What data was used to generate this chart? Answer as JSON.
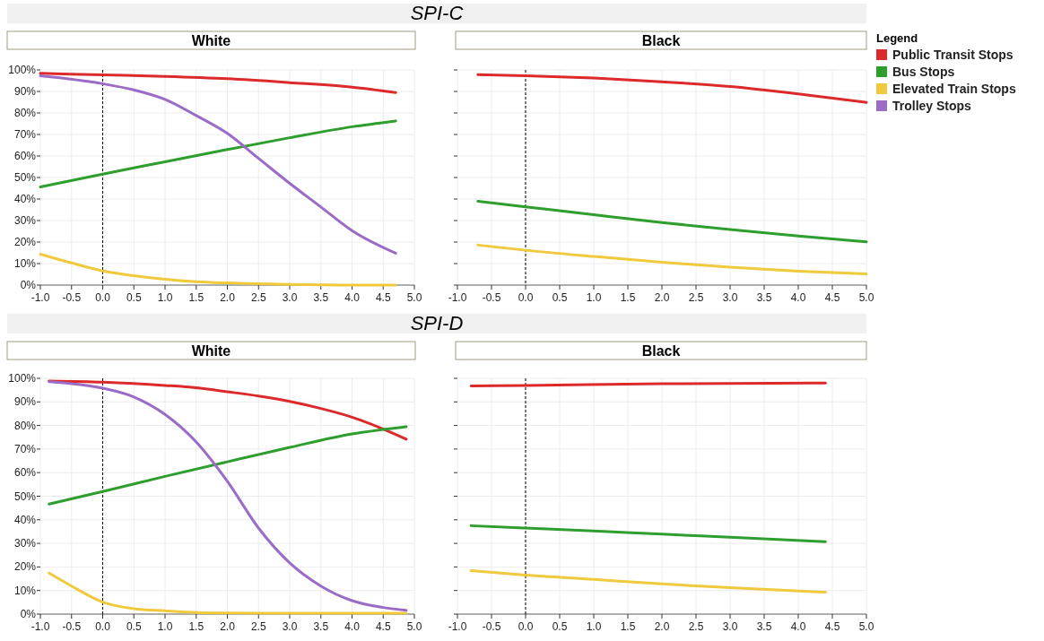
{
  "chart_data": [
    {
      "type": "line",
      "title": "White",
      "annotations": [
        "SPI-C"
      ],
      "legend": "right",
      "legend_title": "Legend",
      "grid": true,
      "xlim": [
        -1,
        5
      ],
      "ylim": [
        0,
        100
      ],
      "xticks": [
        {
          "value": -1,
          "label": "-1.0"
        },
        {
          "value": -0.5,
          "label": "-0.5"
        },
        {
          "value": 0,
          "label": "0.0"
        },
        {
          "value": 0.5,
          "label": "0.5"
        },
        {
          "value": 1,
          "label": "1.0"
        },
        {
          "value": 1.5,
          "label": "1.5"
        },
        {
          "value": 2,
          "label": "2.0"
        },
        {
          "value": 2.5,
          "label": "2.5"
        },
        {
          "value": 3,
          "label": "3.0"
        },
        {
          "value": 3.5,
          "label": "3.5"
        },
        {
          "value": 4,
          "label": "4.0"
        },
        {
          "value": 4.5,
          "label": "4.5"
        },
        {
          "value": 5,
          "label": "5.0"
        }
      ],
      "yticks": [
        {
          "value": 0,
          "label": "0%"
        },
        {
          "value": 10,
          "label": "10%"
        },
        {
          "value": 20,
          "label": "20%"
        },
        {
          "value": 30,
          "label": "30%"
        },
        {
          "value": 40,
          "label": "40%"
        },
        {
          "value": 50,
          "label": "50%"
        },
        {
          "value": 60,
          "label": "60%"
        },
        {
          "value": 70,
          "label": "70%"
        },
        {
          "value": 80,
          "label": "80%"
        },
        {
          "value": 90,
          "label": "90%"
        },
        {
          "value": 100,
          "label": "100%"
        }
      ],
      "ref_lines": [
        {
          "axis": "x",
          "value": 0,
          "color": "#000000",
          "line_style": "dashed"
        }
      ],
      "series": [
        {
          "name": "Public Transit Stops",
          "color": "#dc2a2a",
          "x": [
            -1,
            0,
            1,
            2,
            3,
            4,
            4.7
          ],
          "values": [
            98.4,
            97.7,
            97,
            95.9,
            94.1,
            92,
            89.5
          ]
        },
        {
          "name": "Bus Stops",
          "color": "#2e9e2e",
          "x": [
            -1,
            0,
            1,
            2,
            3,
            4,
            4.7
          ],
          "values": [
            45.6,
            51.6,
            57.3,
            63,
            68.5,
            73.6,
            76.3
          ]
        },
        {
          "name": "Elevated Train Stops",
          "color": "#f0c93c",
          "x": [
            -1,
            -0.5,
            0,
            0.5,
            1,
            1.5,
            2,
            3,
            4,
            4.7
          ],
          "values": [
            14.4,
            10.3,
            6.6,
            4.4,
            2.7,
            1.6,
            1,
            0.3,
            0,
            0
          ]
        },
        {
          "name": "Trolley Stops",
          "color": "#9b6bc8",
          "x": [
            -1,
            0,
            0.5,
            1,
            1.5,
            2,
            2.5,
            3,
            3.5,
            4,
            4.7
          ],
          "values": [
            97.3,
            93.6,
            90.7,
            86.3,
            78.8,
            70.5,
            58.9,
            47.3,
            36.3,
            25.3,
            14.8
          ]
        }
      ]
    },
    {
      "type": "line",
      "title": "Black",
      "grid": true,
      "tick_labels": "x",
      "xlim": [
        -1,
        5
      ],
      "ylim": [
        0,
        100
      ],
      "xticks": [
        {
          "value": -1,
          "label": "-1.0"
        },
        {
          "value": -0.5,
          "label": "-0.5"
        },
        {
          "value": 0,
          "label": "0.0"
        },
        {
          "value": 0.5,
          "label": "0.5"
        },
        {
          "value": 1,
          "label": "1.0"
        },
        {
          "value": 1.5,
          "label": "1.5"
        },
        {
          "value": 2,
          "label": "2.0"
        },
        {
          "value": 2.5,
          "label": "2.5"
        },
        {
          "value": 3,
          "label": "3.0"
        },
        {
          "value": 3.5,
          "label": "3.5"
        },
        {
          "value": 4,
          "label": "4.0"
        },
        {
          "value": 4.5,
          "label": "4.5"
        },
        {
          "value": 5,
          "label": "5.0"
        }
      ],
      "yticks": [
        0,
        10,
        20,
        30,
        40,
        50,
        60,
        70,
        80,
        90,
        100
      ],
      "ref_lines": [
        {
          "axis": "x",
          "value": 0,
          "color": "#000000",
          "line_style": "dashed"
        }
      ],
      "series": [
        {
          "color": "#dc2a2a",
          "x": [
            -0.7,
            0,
            1,
            2,
            3,
            4,
            5
          ],
          "values": [
            97.8,
            97.3,
            96.2,
            94.5,
            92.3,
            88.9,
            84.9
          ]
        },
        {
          "color": "#2e9e2e",
          "x": [
            -0.7,
            0,
            1,
            2,
            3,
            4,
            5
          ],
          "values": [
            39,
            36.4,
            32.7,
            29.1,
            25.8,
            22.8,
            20.1
          ]
        },
        {
          "color": "#f0c93c",
          "x": [
            -0.7,
            0,
            1,
            2,
            3,
            4,
            5
          ],
          "values": [
            18.6,
            16.2,
            13.3,
            10.6,
            8.3,
            6.5,
            5.2
          ]
        }
      ]
    },
    {
      "type": "line",
      "title": "White",
      "annotations": [
        "SPI-D"
      ],
      "grid": true,
      "xlim": [
        -1,
        5
      ],
      "ylim": [
        0,
        100
      ],
      "xticks": [
        {
          "value": -1,
          "label": "-1.0"
        },
        {
          "value": -0.5,
          "label": "-0.5"
        },
        {
          "value": 0,
          "label": "0.0"
        },
        {
          "value": 0.5,
          "label": "0.5"
        },
        {
          "value": 1,
          "label": "1.0"
        },
        {
          "value": 1.5,
          "label": "1.5"
        },
        {
          "value": 2,
          "label": "2.0"
        },
        {
          "value": 2.5,
          "label": "2.5"
        },
        {
          "value": 3,
          "label": "3.0"
        },
        {
          "value": 3.5,
          "label": "3.5"
        },
        {
          "value": 4,
          "label": "4.0"
        },
        {
          "value": 4.5,
          "label": "4.5"
        },
        {
          "value": 5,
          "label": "5.0"
        }
      ],
      "yticks": [
        {
          "value": 0,
          "label": "0%"
        },
        {
          "value": 10,
          "label": "10%"
        },
        {
          "value": 20,
          "label": "20%"
        },
        {
          "value": 30,
          "label": "30%"
        },
        {
          "value": 40,
          "label": "40%"
        },
        {
          "value": 50,
          "label": "50%"
        },
        {
          "value": 60,
          "label": "60%"
        },
        {
          "value": 70,
          "label": "70%"
        },
        {
          "value": 80,
          "label": "80%"
        },
        {
          "value": 90,
          "label": "90%"
        },
        {
          "value": 100,
          "label": "100%"
        }
      ],
      "ref_lines": [
        {
          "axis": "x",
          "value": 0,
          "color": "#000000",
          "line_style": "dashed"
        }
      ],
      "series": [
        {
          "color": "#dc2a2a",
          "x": [
            -0.86,
            0,
            1,
            1.5,
            2,
            2.5,
            3,
            3.5,
            4,
            4.5,
            4.87
          ],
          "values": [
            98.9,
            98.4,
            97,
            96,
            94.3,
            92.5,
            90.2,
            87.2,
            83.5,
            78.5,
            74.2
          ]
        },
        {
          "color": "#2e9e2e",
          "x": [
            -0.86,
            0,
            1,
            2,
            3,
            4,
            4.87
          ],
          "values": [
            46.7,
            52,
            58.4,
            64.6,
            70.7,
            76.4,
            79.5
          ]
        },
        {
          "color": "#f0c93c",
          "x": [
            -0.86,
            -0.5,
            0,
            0.5,
            1,
            1.5,
            2,
            3,
            4.87
          ],
          "values": [
            17.4,
            11.9,
            5.1,
            2.3,
            1.4,
            0.7,
            0.5,
            0.4,
            0.4
          ]
        },
        {
          "color": "#9b6bc8",
          "x": [
            -0.86,
            0,
            0.5,
            1,
            1.5,
            2,
            2.5,
            3,
            3.5,
            4,
            4.5,
            4.87
          ],
          "values": [
            98.6,
            95.8,
            92.1,
            84.7,
            73,
            56.3,
            36.5,
            21.7,
            11.9,
            5.7,
            2.8,
            1.6
          ]
        }
      ]
    },
    {
      "type": "line",
      "title": "Black",
      "grid": true,
      "tick_labels": "x",
      "xlim": [
        -1,
        5
      ],
      "ylim": [
        0,
        100
      ],
      "xticks": [
        {
          "value": -1,
          "label": "-1.0"
        },
        {
          "value": -0.5,
          "label": "-0.5"
        },
        {
          "value": 0,
          "label": "0.0"
        },
        {
          "value": 0.5,
          "label": "0.5"
        },
        {
          "value": 1,
          "label": "1.0"
        },
        {
          "value": 1.5,
          "label": "1.5"
        },
        {
          "value": 2,
          "label": "2.0"
        },
        {
          "value": 2.5,
          "label": "2.5"
        },
        {
          "value": 3,
          "label": "3.0"
        },
        {
          "value": 3.5,
          "label": "3.5"
        },
        {
          "value": 4,
          "label": "4.0"
        },
        {
          "value": 4.5,
          "label": "4.5"
        },
        {
          "value": 5,
          "label": "5.0"
        }
      ],
      "yticks": [
        0,
        10,
        20,
        30,
        40,
        50,
        60,
        70,
        80,
        90,
        100
      ],
      "ref_lines": [
        {
          "axis": "x",
          "value": 0,
          "color": "#000000",
          "line_style": "dashed"
        }
      ],
      "series": [
        {
          "color": "#dc2a2a",
          "x": [
            -0.8,
            0,
            2,
            4.4
          ],
          "values": [
            96.8,
            97,
            97.7,
            98
          ]
        },
        {
          "color": "#2e9e2e",
          "x": [
            -0.8,
            0,
            1,
            2,
            3,
            4.4
          ],
          "values": [
            37.5,
            36.5,
            35.3,
            33.9,
            32.6,
            30.7
          ]
        },
        {
          "color": "#f0c93c",
          "x": [
            -0.8,
            0,
            1,
            2,
            3,
            4.4
          ],
          "values": [
            18.4,
            16.5,
            14.7,
            12.8,
            11.2,
            9.3
          ]
        }
      ]
    }
  ]
}
